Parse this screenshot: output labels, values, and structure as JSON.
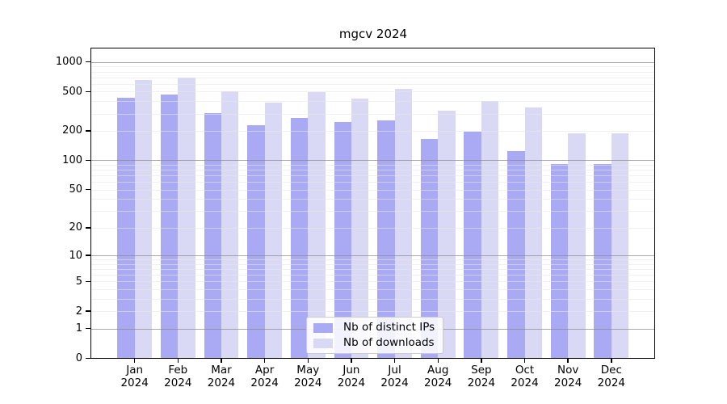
{
  "title": "mgcv 2024",
  "chart_data": {
    "type": "bar",
    "title": "mgcv 2024",
    "categories": [
      "Jan",
      "Feb",
      "Mar",
      "Apr",
      "May",
      "Jun",
      "Jul",
      "Aug",
      "Sep",
      "Oct",
      "Nov",
      "Dec"
    ],
    "category_year_label": "2024",
    "series": [
      {
        "name": "Nb of distinct IPs",
        "color": "#a9a9f4",
        "values": [
          435,
          470,
          305,
          230,
          270,
          247,
          257,
          165,
          195,
          125,
          91,
          92
        ]
      },
      {
        "name": "Nb of downloads",
        "color": "#d9d9f6",
        "values": [
          660,
          700,
          505,
          385,
          495,
          425,
          530,
          318,
          405,
          348,
          187,
          189
        ]
      }
    ],
    "yticks": [
      0,
      1,
      2,
      5,
      10,
      20,
      50,
      100,
      200,
      500,
      1000
    ],
    "major_gridline_values": [
      1,
      10,
      100,
      1000
    ],
    "scale": "log10(value+1), 0 at baseline",
    "ylim": [
      0,
      1400
    ],
    "grid": true,
    "legend_position": "bottom-center",
    "colors": {
      "major_grid": "rgba(140,140,140,0.75)",
      "minor_grid": "rgba(230,230,230,0.6)",
      "axis": "#000000",
      "background": "#ffffff"
    }
  }
}
